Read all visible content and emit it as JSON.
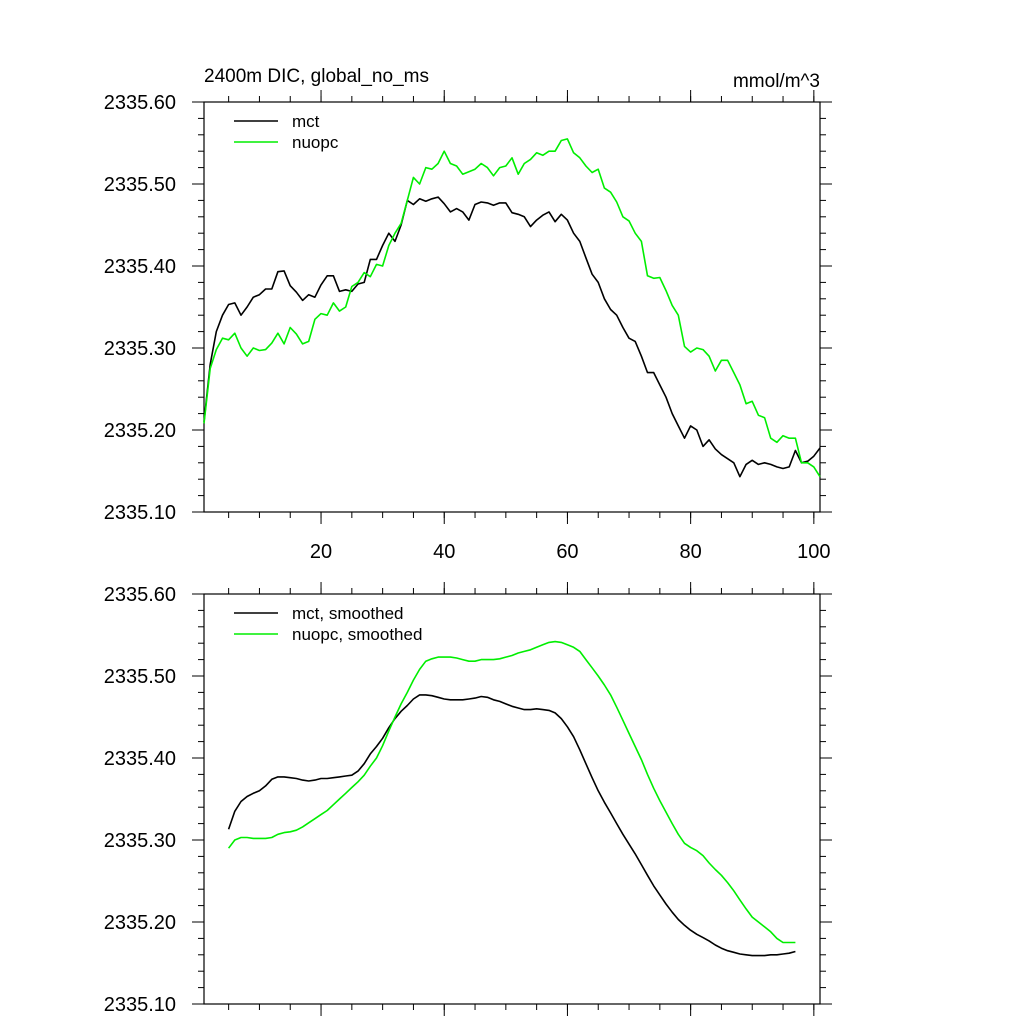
{
  "figure": {
    "title_left": "2400m DIC, global_no_ms",
    "title_right": "mmol/m^3"
  },
  "chart_data": [
    {
      "type": "line",
      "title": "2400m DIC, global_no_ms",
      "units": "mmol/m^3",
      "xlim": [
        1,
        101
      ],
      "ylim": [
        2335.1,
        2335.6
      ],
      "xticks": [
        20,
        40,
        60,
        80,
        100
      ],
      "xtick_labels": [
        "20",
        "40",
        "60",
        "80",
        "100"
      ],
      "yticks": [
        2335.1,
        2335.2,
        2335.3,
        2335.4,
        2335.5,
        2335.6
      ],
      "ytick_labels": [
        "2335.10",
        "2335.20",
        "2335.30",
        "2335.40",
        "2335.50",
        "2335.60"
      ],
      "legend_position": "top-left",
      "series": [
        {
          "name": "mct",
          "color": "#000000",
          "x": [
            1,
            2,
            3,
            4,
            5,
            6,
            7,
            8,
            9,
            10,
            11,
            12,
            13,
            14,
            15,
            16,
            17,
            18,
            19,
            20,
            21,
            22,
            23,
            24,
            25,
            26,
            27,
            28,
            29,
            30,
            31,
            32,
            33,
            34,
            35,
            36,
            37,
            38,
            39,
            40,
            41,
            42,
            43,
            44,
            45,
            46,
            47,
            48,
            49,
            50,
            51,
            52,
            53,
            54,
            55,
            56,
            57,
            58,
            59,
            60,
            61,
            62,
            63,
            64,
            65,
            66,
            67,
            68,
            69,
            70,
            71,
            72,
            73,
            74,
            75,
            76,
            77,
            78,
            79,
            80,
            81,
            82,
            83,
            84,
            85,
            86,
            87,
            88,
            89,
            90,
            91,
            92,
            93,
            94,
            95,
            96,
            97,
            98,
            99,
            100,
            101
          ],
          "values": [
            2335.21,
            2335.28,
            2335.32,
            2335.34,
            2335.353,
            2335.355,
            2335.34,
            2335.35,
            2335.362,
            2335.365,
            2335.372,
            2335.372,
            2335.393,
            2335.394,
            2335.376,
            2335.368,
            2335.358,
            2335.365,
            2335.362,
            2335.377,
            2335.388,
            2335.388,
            2335.369,
            2335.371,
            2335.369,
            2335.378,
            2335.38,
            2335.408,
            2335.408,
            2335.425,
            2335.44,
            2335.43,
            2335.45,
            2335.48,
            2335.475,
            2335.482,
            2335.479,
            2335.482,
            2335.484,
            2335.476,
            2335.466,
            2335.47,
            2335.466,
            2335.456,
            2335.475,
            2335.478,
            2335.477,
            2335.474,
            2335.477,
            2335.477,
            2335.465,
            2335.463,
            2335.46,
            2335.448,
            2335.456,
            2335.462,
            2335.466,
            2335.454,
            2335.463,
            2335.456,
            2335.44,
            2335.43,
            2335.41,
            2335.39,
            2335.38,
            2335.36,
            2335.347,
            2335.34,
            2335.325,
            2335.312,
            2335.308,
            2335.29,
            2335.27,
            2335.27,
            2335.255,
            2335.24,
            2335.22,
            2335.205,
            2335.19,
            2335.205,
            2335.2,
            2335.18,
            2335.188,
            2335.177,
            2335.17,
            2335.165,
            2335.16,
            2335.143,
            2335.158,
            2335.163,
            2335.158,
            2335.16,
            2335.158,
            2335.155,
            2335.153,
            2335.155,
            2335.175,
            2335.16,
            2335.162,
            2335.168,
            2335.178
          ]
        },
        {
          "name": "nuopc",
          "color": "#00ee00",
          "x": [
            1,
            2,
            3,
            4,
            5,
            6,
            7,
            8,
            9,
            10,
            11,
            12,
            13,
            14,
            15,
            16,
            17,
            18,
            19,
            20,
            21,
            22,
            23,
            24,
            25,
            26,
            27,
            28,
            29,
            30,
            31,
            32,
            33,
            34,
            35,
            36,
            37,
            38,
            39,
            40,
            41,
            42,
            43,
            44,
            45,
            46,
            47,
            48,
            49,
            50,
            51,
            52,
            53,
            54,
            55,
            56,
            57,
            58,
            59,
            60,
            61,
            62,
            63,
            64,
            65,
            66,
            67,
            68,
            69,
            70,
            71,
            72,
            73,
            74,
            75,
            76,
            77,
            78,
            79,
            80,
            81,
            82,
            83,
            84,
            85,
            86,
            87,
            88,
            89,
            90,
            91,
            92,
            93,
            94,
            95,
            96,
            97,
            98,
            99,
            100,
            101
          ],
          "values": [
            2335.208,
            2335.275,
            2335.298,
            2335.312,
            2335.31,
            2335.318,
            2335.3,
            2335.29,
            2335.3,
            2335.297,
            2335.298,
            2335.306,
            2335.318,
            2335.305,
            2335.325,
            2335.317,
            2335.305,
            2335.308,
            2335.335,
            2335.342,
            2335.34,
            2335.355,
            2335.345,
            2335.35,
            2335.375,
            2335.38,
            2335.392,
            2335.387,
            2335.402,
            2335.4,
            2335.425,
            2335.44,
            2335.452,
            2335.48,
            2335.508,
            2335.5,
            2335.52,
            2335.518,
            2335.525,
            2335.54,
            2335.525,
            2335.522,
            2335.512,
            2335.515,
            2335.518,
            2335.525,
            2335.52,
            2335.51,
            2335.52,
            2335.522,
            2335.532,
            2335.512,
            2335.525,
            2335.53,
            2335.538,
            2335.535,
            2335.54,
            2335.54,
            2335.553,
            2335.555,
            2335.538,
            2335.532,
            2335.522,
            2335.514,
            2335.518,
            2335.495,
            2335.49,
            2335.478,
            2335.46,
            2335.455,
            2335.44,
            2335.43,
            2335.388,
            2335.385,
            2335.386,
            2335.37,
            2335.352,
            2335.34,
            2335.302,
            2335.295,
            2335.3,
            2335.298,
            2335.29,
            2335.272,
            2335.285,
            2335.285,
            2335.27,
            2335.255,
            2335.232,
            2335.235,
            2335.218,
            2335.215,
            2335.19,
            2335.185,
            2335.193,
            2335.19,
            2335.19,
            2335.16,
            2335.16,
            2335.155,
            2335.143
          ]
        }
      ]
    },
    {
      "type": "line",
      "title": "",
      "xlim": [
        1,
        101
      ],
      "ylim": [
        2335.1,
        2335.6
      ],
      "xticks": [
        20,
        40,
        60,
        80,
        100
      ],
      "xtick_labels": [],
      "yticks": [
        2335.1,
        2335.2,
        2335.3,
        2335.4,
        2335.5,
        2335.6
      ],
      "ytick_labels": [
        "2335.10",
        "2335.20",
        "2335.30",
        "2335.40",
        "2335.50",
        "2335.60"
      ],
      "legend_position": "top-left",
      "series": [
        {
          "name": "mct, smoothed",
          "color": "#000000",
          "x": [
            5,
            6,
            7,
            8,
            9,
            10,
            11,
            12,
            13,
            14,
            15,
            16,
            17,
            18,
            19,
            20,
            21,
            22,
            23,
            24,
            25,
            26,
            27,
            28,
            29,
            30,
            31,
            32,
            33,
            34,
            35,
            36,
            37,
            38,
            39,
            40,
            41,
            42,
            43,
            44,
            45,
            46,
            47,
            48,
            49,
            50,
            51,
            52,
            53,
            54,
            55,
            56,
            57,
            58,
            59,
            60,
            61,
            62,
            63,
            64,
            65,
            66,
            67,
            68,
            69,
            70,
            71,
            72,
            73,
            74,
            75,
            76,
            77,
            78,
            79,
            80,
            81,
            82,
            83,
            84,
            85,
            86,
            87,
            88,
            89,
            90,
            91,
            92,
            93,
            94,
            95,
            96,
            97
          ],
          "values": [
            2335.313,
            2335.335,
            2335.347,
            2335.353,
            2335.357,
            2335.36,
            2335.366,
            2335.374,
            2335.377,
            2335.377,
            2335.376,
            2335.375,
            2335.373,
            2335.372,
            2335.373,
            2335.375,
            2335.375,
            2335.376,
            2335.377,
            2335.378,
            2335.379,
            2335.384,
            2335.393,
            2335.405,
            2335.414,
            2335.424,
            2335.437,
            2335.448,
            2335.457,
            2335.464,
            2335.472,
            2335.477,
            2335.477,
            2335.476,
            2335.474,
            2335.472,
            2335.471,
            2335.471,
            2335.471,
            2335.472,
            2335.473,
            2335.475,
            2335.474,
            2335.471,
            2335.469,
            2335.466,
            2335.463,
            2335.461,
            2335.459,
            2335.459,
            2335.46,
            2335.459,
            2335.458,
            2335.455,
            2335.448,
            2335.438,
            2335.426,
            2335.41,
            2335.393,
            2335.376,
            2335.36,
            2335.346,
            2335.333,
            2335.32,
            2335.307,
            2335.295,
            2335.283,
            2335.27,
            2335.257,
            2335.244,
            2335.233,
            2335.222,
            2335.212,
            2335.203,
            2335.196,
            2335.19,
            2335.185,
            2335.181,
            2335.177,
            2335.172,
            2335.168,
            2335.165,
            2335.163,
            2335.161,
            2335.16,
            2335.159,
            2335.159,
            2335.159,
            2335.16,
            2335.16,
            2335.161,
            2335.162,
            2335.164
          ]
        },
        {
          "name": "nuopc, smoothed",
          "color": "#00ee00",
          "x": [
            5,
            6,
            7,
            8,
            9,
            10,
            11,
            12,
            13,
            14,
            15,
            16,
            17,
            18,
            19,
            20,
            21,
            22,
            23,
            24,
            25,
            26,
            27,
            28,
            29,
            30,
            31,
            32,
            33,
            34,
            35,
            36,
            37,
            38,
            39,
            40,
            41,
            42,
            43,
            44,
            45,
            46,
            47,
            48,
            49,
            50,
            51,
            52,
            53,
            54,
            55,
            56,
            57,
            58,
            59,
            60,
            61,
            62,
            63,
            64,
            65,
            66,
            67,
            68,
            69,
            70,
            71,
            72,
            73,
            74,
            75,
            76,
            77,
            78,
            79,
            80,
            81,
            82,
            83,
            84,
            85,
            86,
            87,
            88,
            89,
            90,
            91,
            92,
            93,
            94,
            95,
            96,
            97
          ],
          "values": [
            2335.29,
            2335.3,
            2335.303,
            2335.303,
            2335.302,
            2335.302,
            2335.302,
            2335.303,
            2335.307,
            2335.309,
            2335.31,
            2335.312,
            2335.316,
            2335.321,
            2335.326,
            2335.331,
            2335.336,
            2335.343,
            2335.35,
            2335.357,
            2335.364,
            2335.371,
            2335.379,
            2335.39,
            2335.4,
            2335.415,
            2335.433,
            2335.45,
            2335.466,
            2335.48,
            2335.495,
            2335.508,
            2335.518,
            2335.521,
            2335.523,
            2335.523,
            2335.523,
            2335.522,
            2335.52,
            2335.518,
            2335.518,
            2335.52,
            2335.52,
            2335.52,
            2335.521,
            2335.523,
            2335.525,
            2335.528,
            2335.53,
            2335.532,
            2335.535,
            2335.538,
            2335.541,
            2335.542,
            2335.541,
            2335.538,
            2335.535,
            2335.53,
            2335.52,
            2335.51,
            2335.5,
            2335.489,
            2335.477,
            2335.462,
            2335.446,
            2335.43,
            2335.414,
            2335.398,
            2335.38,
            2335.363,
            2335.348,
            2335.334,
            2335.32,
            2335.307,
            2335.296,
            2335.291,
            2335.287,
            2335.281,
            2335.272,
            2335.264,
            2335.257,
            2335.248,
            2335.238,
            2335.227,
            2335.216,
            2335.206,
            2335.2,
            2335.194,
            2335.188,
            2335.18,
            2335.175,
            2335.175,
            2335.175
          ]
        }
      ]
    }
  ]
}
